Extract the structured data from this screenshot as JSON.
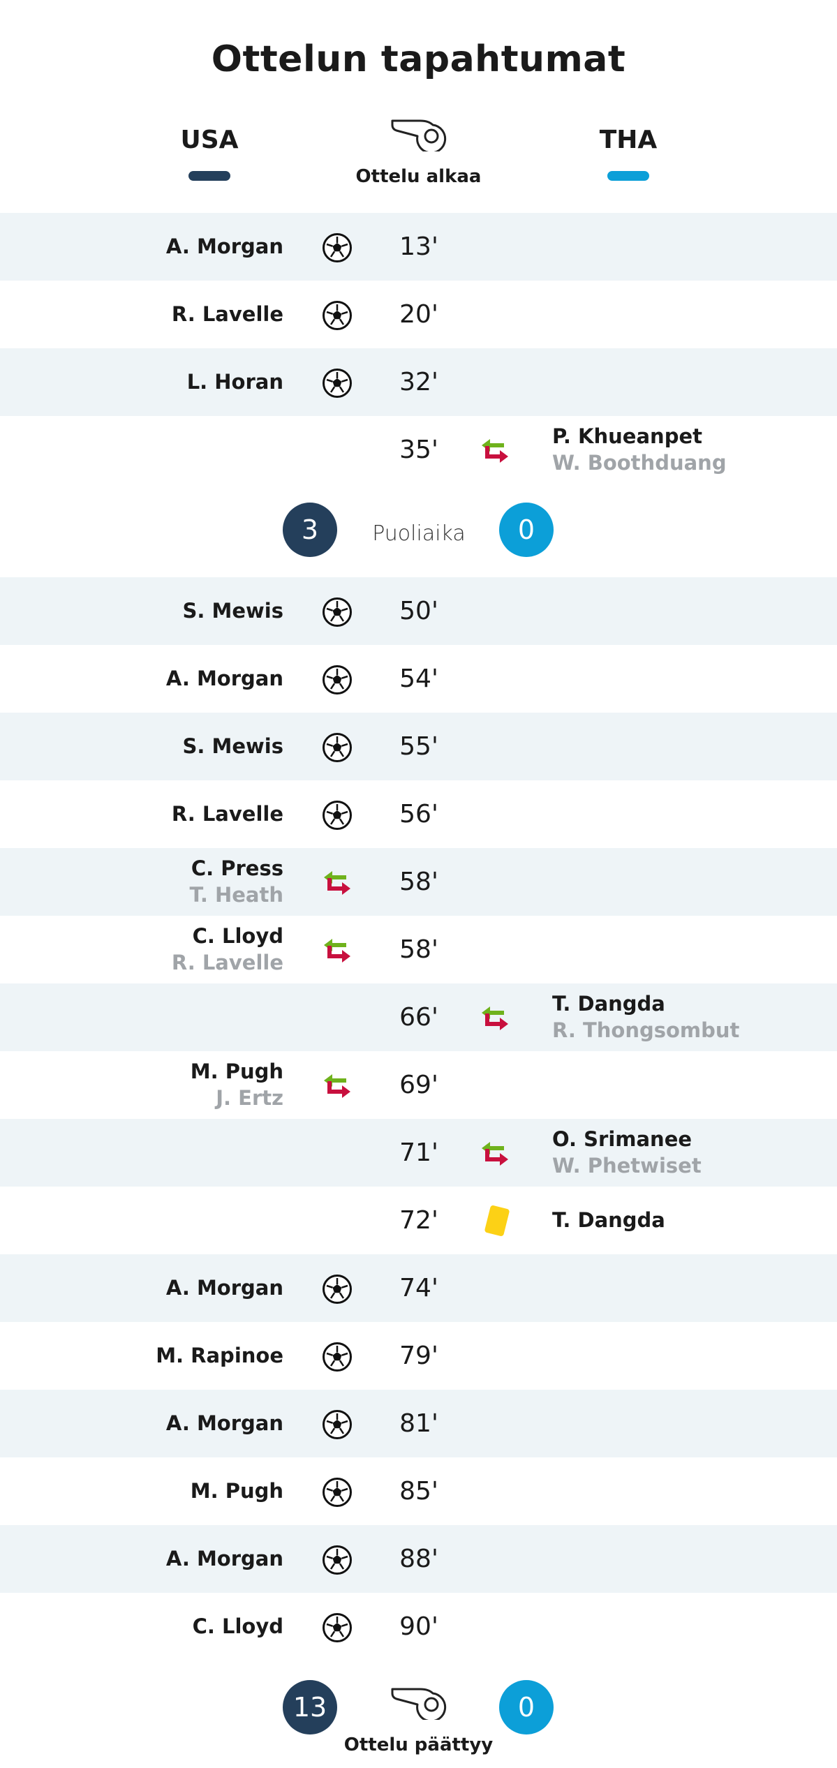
{
  "title": "Ottelun tapahtumat",
  "teams": {
    "home": {
      "name": "USA",
      "color": "#243f5b"
    },
    "away": {
      "name": "THA",
      "color": "#0c9fd8"
    }
  },
  "start_label": "Ottelu alkaa",
  "half_time": {
    "label": "Puoliaika",
    "home_score": "3",
    "away_score": "0"
  },
  "full_time": {
    "label": "Ottelu päättyy",
    "home_score": "13",
    "away_score": "0"
  },
  "icons": {
    "goal": "soccer-ball-icon",
    "substitution": "substitution-arrows-icon",
    "yellow_card": "yellow-card-icon",
    "whistle": "whistle-icon"
  },
  "colors": {
    "row_shade": "#eef4f7",
    "sub_in_arrow": "#6fb21c",
    "sub_out_arrow": "#c8103e",
    "yellow_card": "#fcd116"
  },
  "events": [
    {
      "minute": "13'",
      "side": "home",
      "type": "goal",
      "player": "A. Morgan"
    },
    {
      "minute": "20'",
      "side": "home",
      "type": "goal",
      "player": "R. Lavelle"
    },
    {
      "minute": "32'",
      "side": "home",
      "type": "goal",
      "player": "L. Horan"
    },
    {
      "minute": "35'",
      "side": "away",
      "type": "substitution",
      "player_in": "P. Khueanpet",
      "player_out": "W. Boothduang"
    },
    {
      "minute": "50'",
      "side": "home",
      "type": "goal",
      "player": "S. Mewis"
    },
    {
      "minute": "54'",
      "side": "home",
      "type": "goal",
      "player": "A. Morgan"
    },
    {
      "minute": "55'",
      "side": "home",
      "type": "goal",
      "player": "S. Mewis"
    },
    {
      "minute": "56'",
      "side": "home",
      "type": "goal",
      "player": "R. Lavelle"
    },
    {
      "minute": "58'",
      "side": "home",
      "type": "substitution",
      "player_in": "C. Press",
      "player_out": "T. Heath"
    },
    {
      "minute": "58'",
      "side": "home",
      "type": "substitution",
      "player_in": "C. Lloyd",
      "player_out": "R. Lavelle"
    },
    {
      "minute": "66'",
      "side": "away",
      "type": "substitution",
      "player_in": "T. Dangda",
      "player_out": "R. Thongsombut"
    },
    {
      "minute": "69'",
      "side": "home",
      "type": "substitution",
      "player_in": "M. Pugh",
      "player_out": "J. Ertz"
    },
    {
      "minute": "71'",
      "side": "away",
      "type": "substitution",
      "player_in": "O. Srimanee",
      "player_out": "W. Phetwiset"
    },
    {
      "minute": "72'",
      "side": "away",
      "type": "yellow_card",
      "player": "T. Dangda"
    },
    {
      "minute": "74'",
      "side": "home",
      "type": "goal",
      "player": "A. Morgan"
    },
    {
      "minute": "79'",
      "side": "home",
      "type": "goal",
      "player": "M. Rapinoe"
    },
    {
      "minute": "81'",
      "side": "home",
      "type": "goal",
      "player": "A. Morgan"
    },
    {
      "minute": "85'",
      "side": "home",
      "type": "goal",
      "player": "M. Pugh"
    },
    {
      "minute": "88'",
      "side": "home",
      "type": "goal",
      "player": "A. Morgan"
    },
    {
      "minute": "90'",
      "side": "home",
      "type": "goal",
      "player": "C. Lloyd"
    }
  ]
}
